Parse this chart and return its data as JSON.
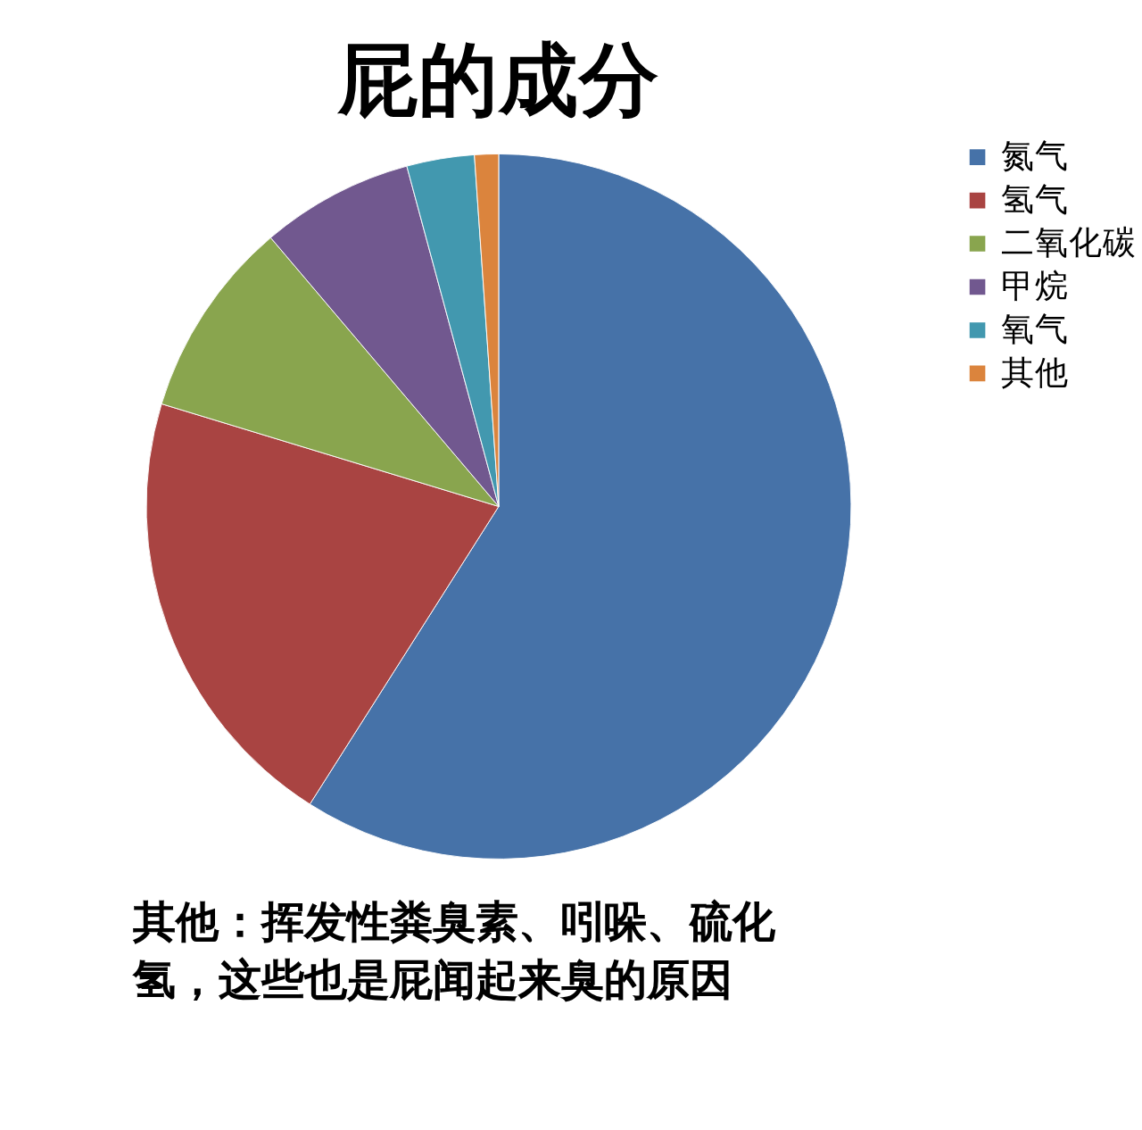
{
  "chart_data": {
    "type": "pie",
    "title": "屁的成分",
    "categories": [
      "氮气",
      "氢气",
      "二氧化碳",
      "甲烷",
      "氧气",
      "其他"
    ],
    "values": [
      59,
      20.7,
      9.1,
      7,
      3.1,
      1.1
    ],
    "colors": [
      "#4672a8",
      "#a94442",
      "#89a54e",
      "#71588f",
      "#4298af",
      "#db843d"
    ],
    "legend": "right",
    "annotations": [
      "其他：挥发性粪臭素、吲哚、硫化氢，这些也是屁闻起来臭的原因"
    ]
  }
}
